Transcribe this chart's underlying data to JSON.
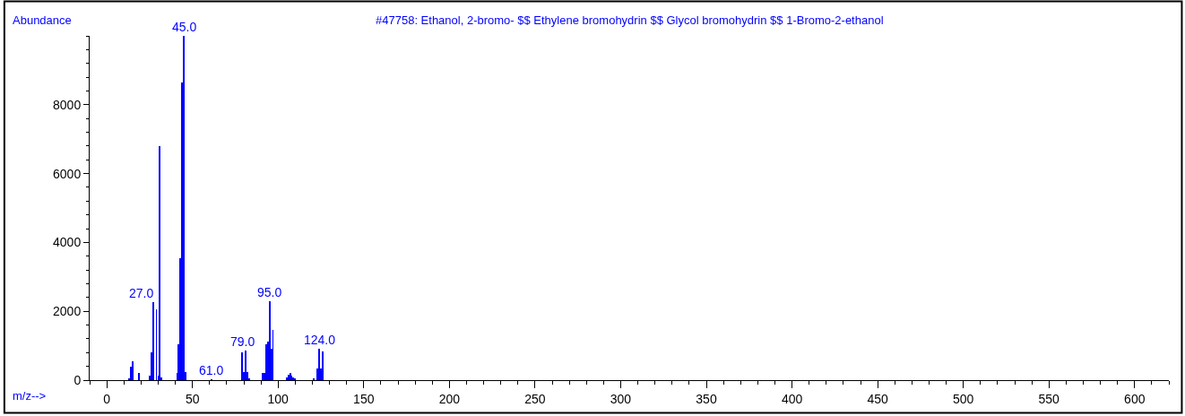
{
  "chart_data": {
    "type": "bar",
    "title": "#47758: Ethanol, 2-bromo- $$ Ethylene bromohydrin $$ Glycol bromohydrin $$ 1-Bromo-2-ethanol",
    "xlabel": "m/z-->",
    "ylabel": "Abundance",
    "x": [
      13,
      14,
      15,
      19,
      25,
      26,
      27,
      29,
      30,
      31,
      32,
      41,
      42,
      43,
      44,
      45,
      46,
      61,
      79,
      80,
      81,
      82,
      83,
      91,
      92,
      93,
      94,
      95,
      96,
      97,
      105,
      106,
      107,
      108,
      109,
      110,
      121,
      123,
      124,
      125,
      126
    ],
    "series": [
      {
        "color": "#0000ff",
        "values": [
          50,
          390,
          540,
          210,
          140,
          810,
          2270,
          2070,
          140,
          6790,
          80,
          210,
          1040,
          3550,
          8640,
          9990,
          240,
          20,
          810,
          240,
          870,
          240,
          30,
          210,
          210,
          1030,
          1120,
          2290,
          910,
          1450,
          80,
          150,
          210,
          120,
          80,
          60,
          40,
          340,
          920,
          340,
          840
        ]
      }
    ],
    "annotations": [
      {
        "text": "27.0",
        "x": 27,
        "y": 2270
      },
      {
        "text": "45.0",
        "x": 45,
        "y": 9990
      },
      {
        "text": "61.0",
        "x": 61,
        "y": 20
      },
      {
        "text": "79.0",
        "x": 79,
        "y": 870
      },
      {
        "text": "95.0",
        "x": 95,
        "y": 2290
      },
      {
        "text": "124.0",
        "x": 124,
        "y": 920
      }
    ],
    "xlim": [
      -10,
      620
    ],
    "ylim": [
      0,
      10000
    ],
    "xticks": [
      0,
      50,
      100,
      150,
      200,
      250,
      300,
      350,
      400,
      450,
      500,
      550,
      600
    ],
    "yticks": [
      0,
      2000,
      4000,
      6000,
      8000
    ]
  }
}
